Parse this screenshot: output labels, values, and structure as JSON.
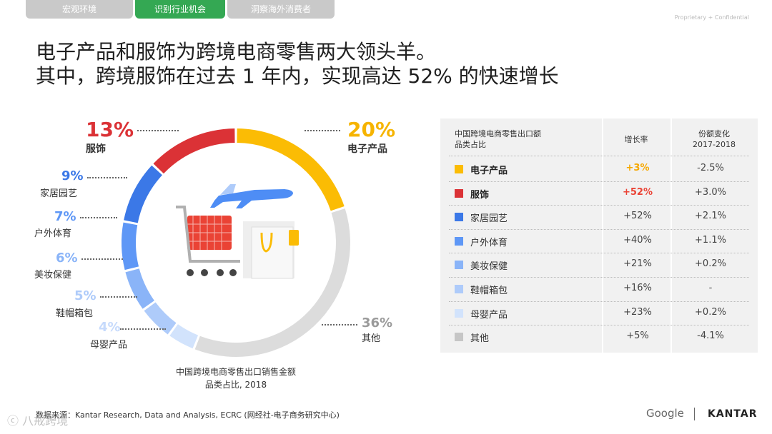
{
  "nav": {
    "tabs": [
      {
        "label": "宏观环境",
        "active": false
      },
      {
        "label": "识别行业机会",
        "active": true
      },
      {
        "label": "洞察海外消费者",
        "active": false
      }
    ],
    "confidential": "Proprietary + Confidential"
  },
  "headline": {
    "line1": "电子产品和服饰为跨境电商零售两大领头羊。",
    "line2": "其中，跨境服饰在过去 1 年内，实现高达 52% 的快速增长"
  },
  "chart_data": {
    "type": "pie",
    "title": "中国跨境电商零售出口销售金额\n品类占比, 2018",
    "caption_line1": "中国跨境电商零售出口销售金额",
    "caption_line2": "品类占比, 2018",
    "slices": [
      {
        "label": "电子产品",
        "display": "20%",
        "value": 20,
        "color": "#fbbc04"
      },
      {
        "label": "其他",
        "display": "36%",
        "value": 36,
        "color": "#dcdcdc"
      },
      {
        "label": "母婴产品",
        "display": "4%",
        "value": 4,
        "color": "#d2e3fc"
      },
      {
        "label": "鞋帽箱包",
        "display": "5%",
        "value": 5,
        "color": "#aecbfa"
      },
      {
        "label": "美妆保健",
        "display": "6%",
        "value": 6,
        "color": "#8ab4f8"
      },
      {
        "label": "户外体育",
        "display": "7%",
        "value": 7,
        "color": "#5e97f6"
      },
      {
        "label": "家居园艺",
        "display": "9%",
        "value": 9,
        "color": "#3b78e7"
      },
      {
        "label": "服饰",
        "display": "13%",
        "value": 13,
        "color": "#db3236"
      }
    ]
  },
  "table": {
    "header_category": "中国跨境电商零售出口额\n品类占比",
    "header_growth": "增长率",
    "header_share": "份额变化\n2017-2018",
    "rows": [
      {
        "name": "电子产品",
        "growth": "+3%",
        "share": "-2.5%",
        "color": "#fbbc04",
        "bold": true,
        "growth_style": "hy"
      },
      {
        "name": "服饰",
        "growth": "+52%",
        "share": "+3.0%",
        "color": "#db3236",
        "bold": true,
        "growth_style": "hi"
      },
      {
        "name": "家居园艺",
        "growth": "+52%",
        "share": "+2.1%",
        "color": "#3b78e7",
        "bold": false,
        "growth_style": ""
      },
      {
        "name": "户外体育",
        "growth": "+40%",
        "share": "+1.1%",
        "color": "#5e97f6",
        "bold": false,
        "growth_style": ""
      },
      {
        "name": "美妆保健",
        "growth": "+21%",
        "share": "+0.2%",
        "color": "#8ab4f8",
        "bold": false,
        "growth_style": ""
      },
      {
        "name": "鞋帽箱包",
        "growth": "+16%",
        "share": "-",
        "color": "#aecbfa",
        "bold": false,
        "growth_style": ""
      },
      {
        "name": "母婴产品",
        "growth": "+23%",
        "share": "+0.2%",
        "color": "#d2e3fc",
        "bold": false,
        "growth_style": ""
      },
      {
        "name": "其他",
        "growth": "+5%",
        "share": "-4.1%",
        "color": "#c6c6c6",
        "bold": false,
        "growth_style": ""
      }
    ]
  },
  "footer": {
    "source": "数据来源：Kantar Research, Data and Analysis, ECRC (网经社-电子商务研究中心)",
    "google": "Google",
    "kantar": "KANTAR",
    "watermark": "ⓒ 八戒跨境"
  },
  "icon": {
    "name": "plane-cart-shopping-bag-icon"
  }
}
